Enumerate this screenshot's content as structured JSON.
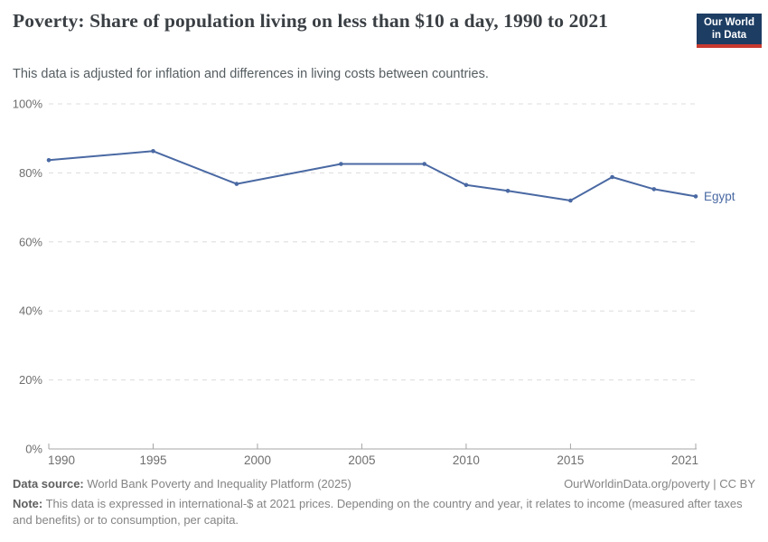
{
  "header": {
    "title": "Poverty: Share of population living on less than $10 a day, 1990 to 2021",
    "subtitle": "This data is adjusted for inflation and differences in living costs between countries.",
    "logo": {
      "line1": "Our World",
      "line2": "in Data"
    }
  },
  "chart_data": {
    "type": "line",
    "title": "Poverty: Share of population living on less than $10 a day, 1990 to 2021",
    "xlabel": "",
    "ylabel": "",
    "xlim": [
      1990,
      2021
    ],
    "ylim": [
      0,
      100
    ],
    "x_ticks": [
      1990,
      1995,
      2000,
      2005,
      2010,
      2015,
      2021
    ],
    "y_ticks": [
      0,
      20,
      40,
      60,
      80,
      100
    ],
    "y_tick_suffix": "%",
    "grid": "horizontal-dashed",
    "legend": "entity-label-at-line-end",
    "series": [
      {
        "name": "Egypt",
        "color": "#4a69a3",
        "points": [
          {
            "year": 1990,
            "value": 83.7
          },
          {
            "year": 1995,
            "value": 86.3
          },
          {
            "year": 1999,
            "value": 76.8
          },
          {
            "year": 2004,
            "value": 82.6
          },
          {
            "year": 2008,
            "value": 82.6
          },
          {
            "year": 2010,
            "value": 76.5
          },
          {
            "year": 2012,
            "value": 74.8
          },
          {
            "year": 2015,
            "value": 72.0
          },
          {
            "year": 2017,
            "value": 78.8
          },
          {
            "year": 2019,
            "value": 75.3
          },
          {
            "year": 2021,
            "value": 73.2
          }
        ]
      }
    ]
  },
  "footer": {
    "datasource_label": "Data source:",
    "datasource_text": " World Bank Poverty and Inequality Platform (2025)",
    "license_text": "OurWorldinData.org/poverty | CC BY",
    "note_label": "Note:",
    "note_text": " This data is expressed in international-$ at 2021 prices. Depending on the country and year, it relates to income (measured after taxes and benefits) or to consumption, per capita."
  },
  "colors": {
    "line": "#4a69a3",
    "grid": "#dcdcdc",
    "axis": "#a5a5a5",
    "tick_label": "#6e6e6e",
    "logo_bg": "#1d3d63",
    "logo_bar": "#c8392f"
  }
}
